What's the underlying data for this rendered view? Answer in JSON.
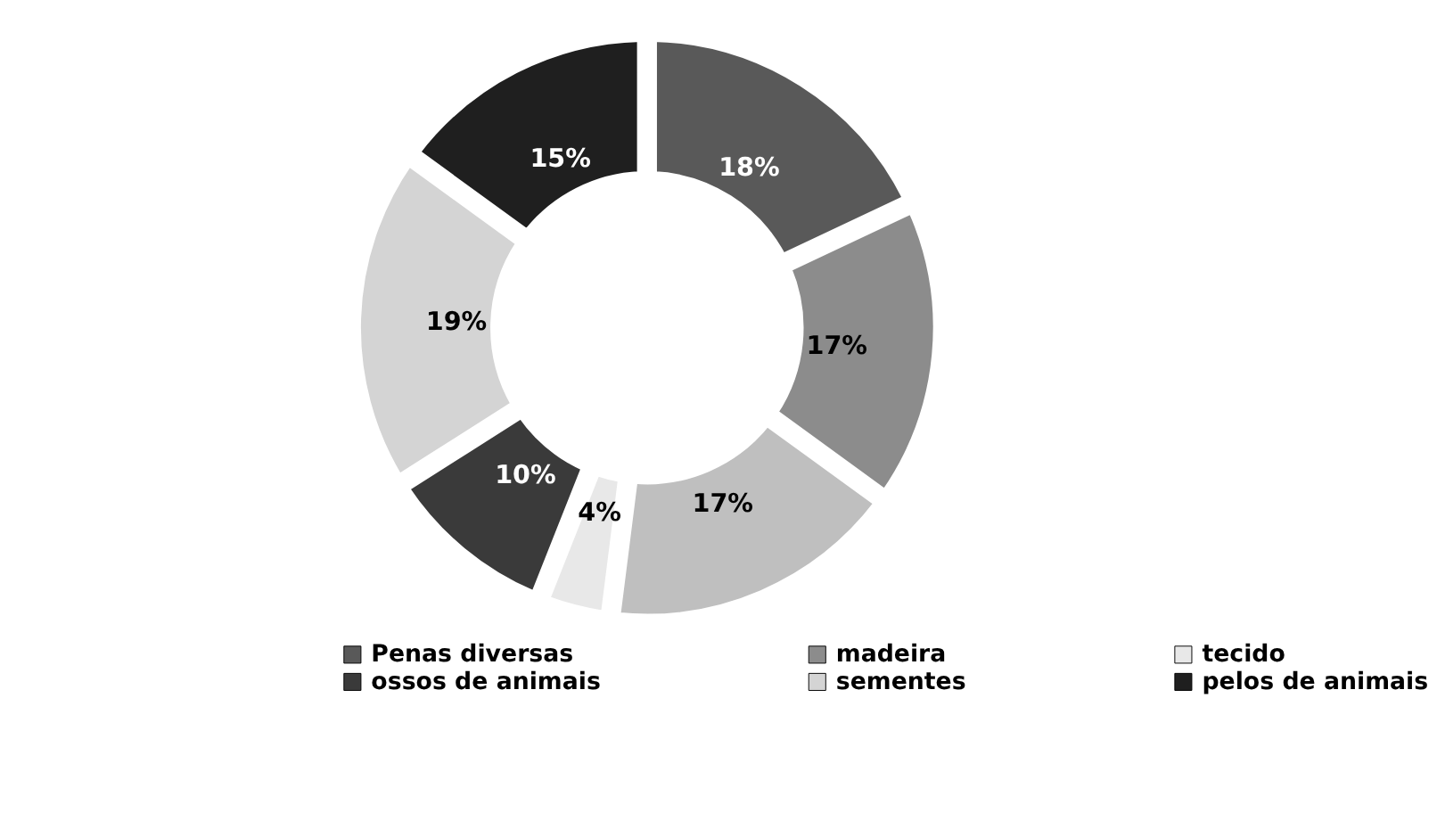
{
  "chart_data": {
    "type": "donut",
    "categories": [
      "Penas diversas",
      "madeira",
      null,
      "tecido",
      "ossos de animais",
      "sementes",
      "pelos de animais"
    ],
    "values": [
      18,
      17,
      17,
      4,
      10,
      19,
      15
    ],
    "value_labels": [
      "18%",
      "17%",
      "17%",
      "4%",
      "10%",
      "19%",
      "15%"
    ],
    "colors": [
      "#595959",
      "#8c8c8c",
      "#bfbfbf",
      "#e8e8e8",
      "#3a3a3a",
      "#d4d4d4",
      "#1f1f1f"
    ],
    "legend": "bottom"
  }
}
